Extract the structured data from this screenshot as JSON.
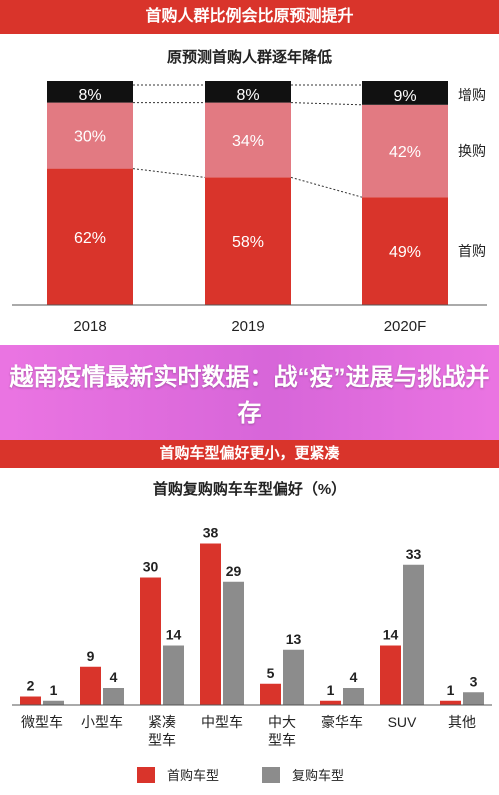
{
  "header": {
    "top_banner": "首购人群比例会比原预测提升",
    "bottom_banner": "首购车型偏好更小，更紧凑",
    "overlay_title": "越南疫情最新实时数据：战“疫”进展与挑战并存"
  },
  "colors": {
    "red": "#d9342b",
    "pink": "#e27a82",
    "black": "#111111",
    "gray": "#8c8c8c",
    "overlay": "#e05fd8"
  },
  "chart_data": [
    {
      "type": "bar",
      "stacked": true,
      "title": "原预测首购人群逐年降低",
      "categories": [
        "2018",
        "2019",
        "2020F"
      ],
      "series": [
        {
          "name": "首购",
          "values": [
            62,
            58,
            49
          ],
          "labels": [
            "62%",
            "58%",
            "49%"
          ],
          "color": "#d9342b"
        },
        {
          "name": "换购",
          "values": [
            30,
            34,
            42
          ],
          "labels": [
            "30%",
            "34%",
            "42%"
          ],
          "color": "#e27a82"
        },
        {
          "name": "增购",
          "values": [
            8,
            8,
            9
          ],
          "labels": [
            "8%",
            "8%",
            "9%"
          ],
          "color": "#111111"
        }
      ],
      "ylim": [
        0,
        100
      ],
      "legend": "right"
    },
    {
      "type": "bar",
      "title": "首购复购购车车型偏好（%）",
      "categories": [
        "微型车",
        "小型车",
        "紧凑型车",
        "中型车",
        "中大型车",
        "豪华车",
        "SUV",
        "其他"
      ],
      "category_lines": [
        [
          "微型车"
        ],
        [
          "小型车"
        ],
        [
          "紧凑",
          "型车"
        ],
        [
          "中型车"
        ],
        [
          "中大",
          "型车"
        ],
        [
          "豪华车"
        ],
        [
          "SUV"
        ],
        [
          "其他"
        ]
      ],
      "series": [
        {
          "name": "首购车型",
          "values": [
            2,
            9,
            30,
            38,
            5,
            1,
            14,
            1
          ],
          "color": "#d9342b"
        },
        {
          "name": "复购车型",
          "values": [
            1,
            4,
            14,
            29,
            13,
            4,
            33,
            3
          ],
          "color": "#8c8c8c"
        }
      ],
      "ylim": [
        0,
        40
      ],
      "legend": "bottom"
    }
  ]
}
